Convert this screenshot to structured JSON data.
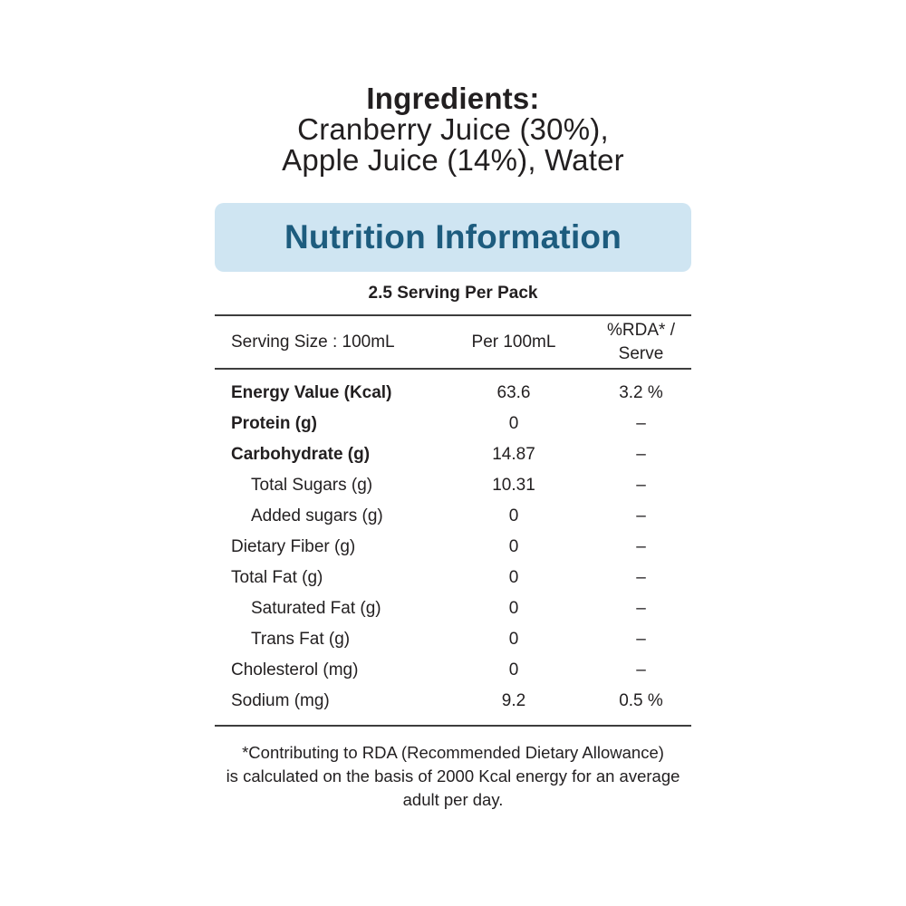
{
  "ingredients": {
    "title": "Ingredients:",
    "line1": "Cranberry Juice (30%),",
    "line2": "Apple Juice (14%), Water"
  },
  "banner": {
    "title": "Nutrition Information"
  },
  "serving_per_pack": "2.5 Serving Per Pack",
  "table": {
    "header": {
      "serving_size": "Serving Size : 100mL",
      "per_amount": "Per 100mL",
      "rda_line1": "%RDA* /",
      "rda_line2": "Serve"
    },
    "rows": [
      {
        "label": "Energy Value (Kcal)",
        "per100": "63.6",
        "rda": "3.2 %"
      },
      {
        "label": "Protein (g)",
        "per100": "0",
        "rda": "–"
      },
      {
        "label": "Carbohydrate (g)",
        "per100": "14.87",
        "rda": "–"
      },
      {
        "label": "Total Sugars (g)",
        "per100": "10.31",
        "rda": "–"
      },
      {
        "label": "Added sugars (g)",
        "per100": "0",
        "rda": "–"
      },
      {
        "label": "Dietary Fiber (g)",
        "per100": "0",
        "rda": "–"
      },
      {
        "label": "Total Fat (g)",
        "per100": "0",
        "rda": "–"
      },
      {
        "label": "Saturated Fat (g)",
        "per100": "0",
        "rda": "–"
      },
      {
        "label": "Trans Fat (g)",
        "per100": "0",
        "rda": "–"
      },
      {
        "label": "Cholesterol (mg)",
        "per100": "0",
        "rda": "–"
      },
      {
        "label": "Sodium (mg)",
        "per100": "9.2",
        "rda": "0.5 %"
      }
    ]
  },
  "footnote": {
    "line1": "*Contributing to RDA (Recommended Dietary Allowance)",
    "line2": "is calculated on the basis of 2000 Kcal energy for an average",
    "line3": "adult per day."
  },
  "colors": {
    "banner_bg": "#cfe5f2",
    "banner_text": "#1d5c7e",
    "body_text": "#221f20",
    "rule": "#3d3d3d"
  }
}
